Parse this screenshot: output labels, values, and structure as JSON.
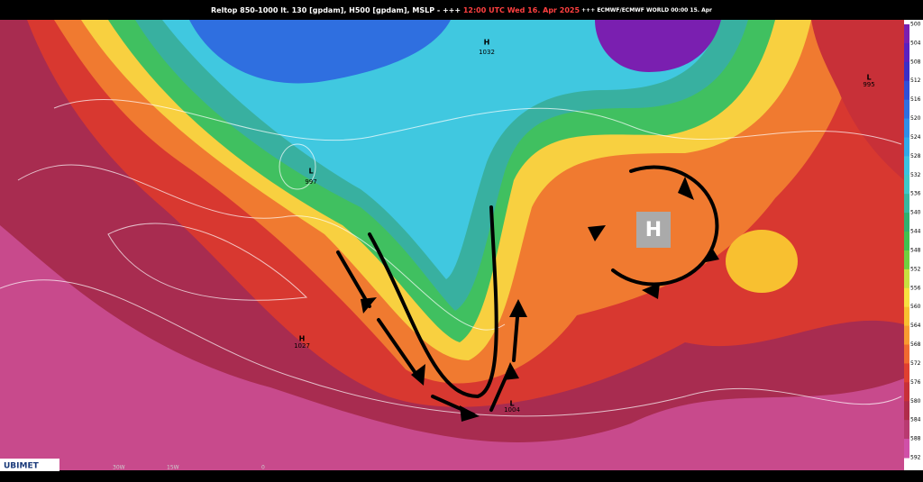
{
  "header": {
    "title_left": "Reltop 850-1000 lt. 130 [gpdam], H500 [gpdam], MSLP - +++ ",
    "title_time": "12:00 UTC Wed 16. Apr 2025",
    "title_right": " +++ ECMWF/ECMWF WORLD 00:00 15. Apr"
  },
  "map_labels": [
    {
      "symbol": "H",
      "value": "1032"
    },
    {
      "symbol": "H",
      "value": "1027"
    },
    {
      "symbol": "L",
      "value": "997"
    },
    {
      "symbol": "L",
      "value": "995"
    },
    {
      "symbol": "L",
      "value": "1004"
    }
  ],
  "center_marker": "H",
  "legend": {
    "labels": [
      500,
      504,
      508,
      512,
      516,
      520,
      524,
      528,
      532,
      536,
      540,
      544,
      548,
      552,
      556,
      560,
      564,
      568,
      572,
      576,
      580,
      584,
      588,
      592
    ],
    "colors": [
      "#7a1fb0",
      "#5a20c0",
      "#3a2ec8",
      "#2f4fd8",
      "#2f6fe0",
      "#2f8fe8",
      "#30aae8",
      "#3cc3e0",
      "#40c8c8",
      "#38b8a0",
      "#30b070",
      "#40c050",
      "#70d040",
      "#c8e040",
      "#f8e040",
      "#f8c030",
      "#f89a30",
      "#f06a30",
      "#e04030",
      "#c83038",
      "#b02c4a",
      "#b83a70",
      "#d050a8"
    ]
  },
  "footer": {
    "brand": "UBIMET",
    "lon": [
      "30W",
      "15W",
      "0"
    ]
  }
}
